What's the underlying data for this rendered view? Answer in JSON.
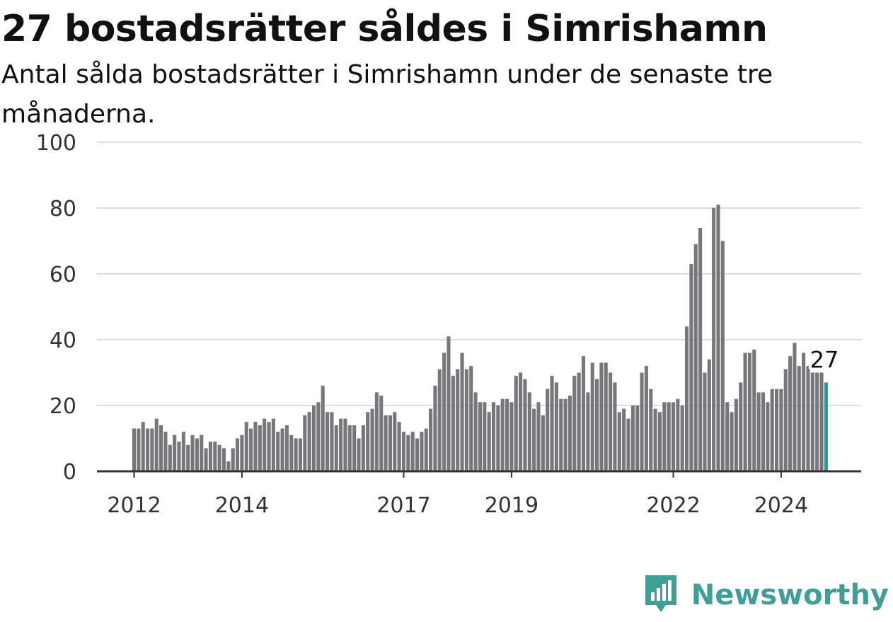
{
  "header": {
    "title": "27 bostadsrätter såldes i Simrishamn",
    "subtitle": "Antal sålda bostadsrätter i Simrishamn under de senaste tre månaderna."
  },
  "brand": {
    "name": "Newsworthy",
    "icon": "newsworthy-logo-icon",
    "color": "#3f9e96"
  },
  "colors": {
    "bar": "#77767b",
    "highlight": "#14a39a",
    "grid": "#dddddd",
    "axis": "#333333"
  },
  "chart_data": {
    "type": "bar",
    "title": "27 bostadsrätter såldes i Simrishamn",
    "subtitle": "Antal sålda bostadsrätter i Simrishamn under de senaste tre månaderna.",
    "xlabel": "",
    "ylabel": "",
    "ylim": [
      0,
      100
    ],
    "yticks": [
      0,
      20,
      40,
      60,
      80,
      100
    ],
    "xticks": [
      "2012",
      "2014",
      "2017",
      "2019",
      "2022",
      "2024"
    ],
    "grid": true,
    "x_start": "2012-01",
    "x_end": "2024-11",
    "values": [
      13,
      13,
      15,
      13,
      13,
      16,
      14,
      12,
      8,
      11,
      9,
      12,
      8,
      11,
      10,
      11,
      7,
      9,
      9,
      8,
      7,
      3,
      7,
      10,
      11,
      15,
      13,
      15,
      14,
      16,
      15,
      16,
      12,
      13,
      14,
      11,
      10,
      10,
      17,
      18,
      20,
      21,
      26,
      18,
      18,
      14,
      16,
      16,
      14,
      14,
      10,
      14,
      18,
      19,
      24,
      23,
      17,
      17,
      18,
      15,
      12,
      11,
      12,
      10,
      12,
      13,
      19,
      26,
      31,
      36,
      41,
      29,
      31,
      36,
      31,
      32,
      24,
      21,
      21,
      18,
      21,
      20,
      22,
      22,
      21,
      29,
      30,
      28,
      24,
      19,
      21,
      17,
      25,
      29,
      27,
      22,
      22,
      23,
      29,
      30,
      35,
      24,
      33,
      28,
      33,
      33,
      30,
      27,
      18,
      19,
      16,
      20,
      20,
      30,
      32,
      25,
      19,
      18,
      21,
      21,
      21,
      22,
      20,
      44,
      63,
      69,
      74,
      30,
      34,
      80,
      81,
      70,
      21,
      18,
      22,
      27,
      36,
      36,
      37,
      24,
      24,
      21,
      25,
      25,
      25,
      31,
      35,
      39,
      32,
      36,
      32,
      30,
      30,
      30,
      27
    ],
    "highlight": {
      "label": "27",
      "value": 27,
      "position": "last"
    },
    "legend": "none"
  }
}
